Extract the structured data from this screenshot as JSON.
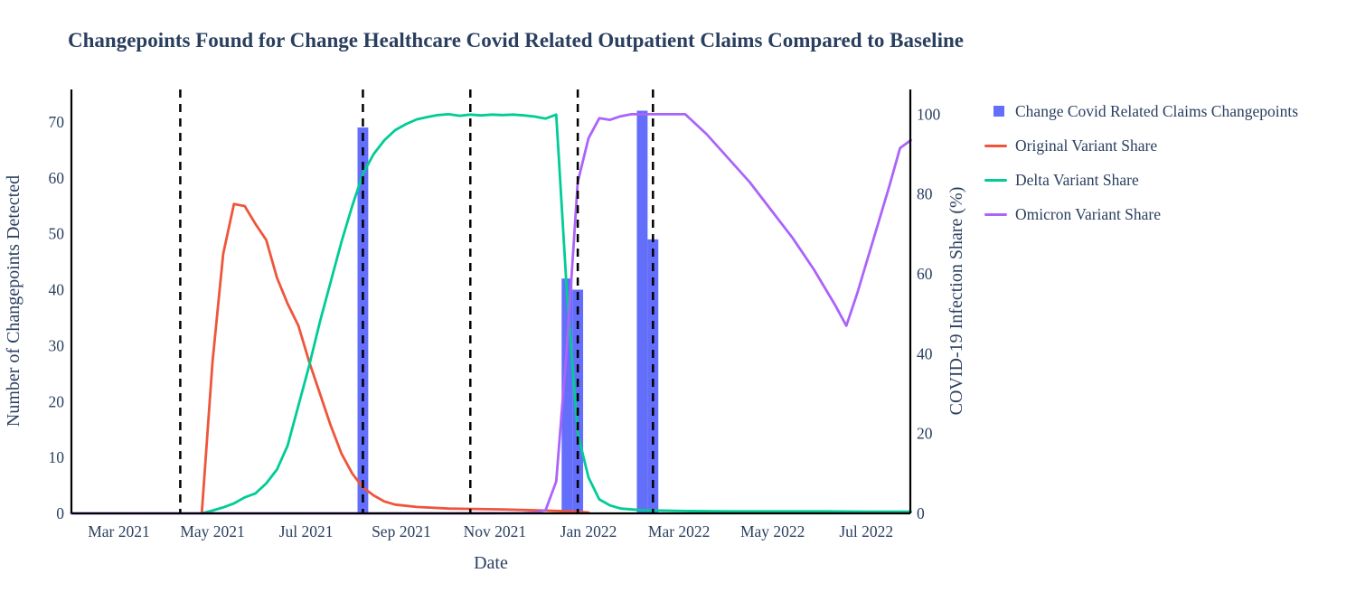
{
  "title": "Changepoints Found for Change Healthcare Covid Related Outpatient Claims Compared to Baseline",
  "colors": {
    "text": "#2a3f5f",
    "axis_line": "#000000",
    "dashed_line": "#000000",
    "changepoint_bar": "#636EFA",
    "original_variant": "#EF553B",
    "delta_variant": "#00CC96",
    "omicron_variant": "#AB63FA",
    "background": "#ffffff"
  },
  "legend": {
    "items": [
      {
        "id": "changepoints",
        "label": "Change Covid Related Claims Changepoints",
        "marker": "square",
        "color": "#636EFA"
      },
      {
        "id": "original",
        "label": "Original Variant Share",
        "marker": "line",
        "color": "#EF553B"
      },
      {
        "id": "delta",
        "label": "Delta Variant Share",
        "marker": "line",
        "color": "#00CC96"
      },
      {
        "id": "omicron",
        "label": "Omicron Variant Share",
        "marker": "line",
        "color": "#AB63FA"
      }
    ]
  },
  "chart_data": {
    "type": "bar+line",
    "title": "Changepoints Found for Change Healthcare Covid Related Outpatient Claims Compared to Baseline",
    "xlabel": "Date",
    "ylabel_left": "Number of Changepoints Detected",
    "ylabel_right": "COVID-19 Infection Share (%)",
    "grid": false,
    "legend_position": "outside-top-right",
    "x_range": [
      "2021-01-29",
      "2022-07-30"
    ],
    "ylim_left": [
      0,
      75.8
    ],
    "ylim_right": [
      0,
      106.2
    ],
    "x_ticks": [
      {
        "date": "2021-03-01",
        "label": "Mar 2021"
      },
      {
        "date": "2021-05-01",
        "label": "May 2021"
      },
      {
        "date": "2021-07-01",
        "label": "Jul 2021"
      },
      {
        "date": "2021-09-01",
        "label": "Sep 2021"
      },
      {
        "date": "2021-11-01",
        "label": "Nov 2021"
      },
      {
        "date": "2022-01-01",
        "label": "Jan 2022"
      },
      {
        "date": "2022-03-01",
        "label": "Mar 2022"
      },
      {
        "date": "2022-05-01",
        "label": "May 2022"
      },
      {
        "date": "2022-07-01",
        "label": "Jul 2022"
      }
    ],
    "y_ticks_left": [
      0,
      10,
      20,
      30,
      40,
      50,
      60,
      70
    ],
    "y_ticks_right": [
      0,
      20,
      40,
      60,
      80,
      100
    ],
    "changepoint_vlines": {
      "style": "black dashed vertical lines",
      "dates": [
        "2021-04-10",
        "2021-08-07",
        "2021-10-16",
        "2021-12-25",
        "2022-02-12"
      ]
    },
    "bars": {
      "name": "Change Covid Related Claims Changepoints",
      "axis": "left",
      "color": "#636EFA",
      "bar_width_days": 7,
      "points": [
        {
          "date": "2021-08-07",
          "value": 69
        },
        {
          "date": "2021-12-18",
          "value": 42
        },
        {
          "date": "2021-12-25",
          "value": 40
        },
        {
          "date": "2022-02-05",
          "value": 72
        },
        {
          "date": "2022-02-12",
          "value": 49
        }
      ]
    },
    "series": [
      {
        "name": "Original Variant Share",
        "axis": "right",
        "color": "#EF553B",
        "points": [
          [
            "2021-04-24",
            0
          ],
          [
            "2021-05-01",
            38
          ],
          [
            "2021-05-08",
            65
          ],
          [
            "2021-05-15",
            77.5
          ],
          [
            "2021-05-22",
            77
          ],
          [
            "2021-05-29",
            72.5
          ],
          [
            "2021-06-05",
            68.5
          ],
          [
            "2021-06-12",
            59
          ],
          [
            "2021-06-19",
            52.5
          ],
          [
            "2021-06-26",
            47
          ],
          [
            "2021-07-03",
            38
          ],
          [
            "2021-07-10",
            30
          ],
          [
            "2021-07-17",
            22
          ],
          [
            "2021-07-24",
            15
          ],
          [
            "2021-07-31",
            10
          ],
          [
            "2021-08-07",
            6.5
          ],
          [
            "2021-08-14",
            4.5
          ],
          [
            "2021-08-21",
            3
          ],
          [
            "2021-08-28",
            2.2
          ],
          [
            "2021-09-11",
            1.6
          ],
          [
            "2021-10-02",
            1.2
          ],
          [
            "2021-11-06",
            1.0
          ],
          [
            "2021-12-04",
            0.7
          ],
          [
            "2021-12-25",
            0.4
          ],
          [
            "2022-01-01",
            0.2
          ]
        ]
      },
      {
        "name": "Delta Variant Share",
        "axis": "right",
        "color": "#00CC96",
        "points": [
          [
            "2021-04-24",
            0
          ],
          [
            "2021-05-01",
            0.7
          ],
          [
            "2021-05-08",
            1.5
          ],
          [
            "2021-05-15",
            2.5
          ],
          [
            "2021-05-22",
            4
          ],
          [
            "2021-05-29",
            5
          ],
          [
            "2021-06-05",
            7.5
          ],
          [
            "2021-06-12",
            11
          ],
          [
            "2021-06-19",
            17
          ],
          [
            "2021-06-26",
            27
          ],
          [
            "2021-07-03",
            37
          ],
          [
            "2021-07-10",
            48
          ],
          [
            "2021-07-17",
            58
          ],
          [
            "2021-07-24",
            68
          ],
          [
            "2021-07-31",
            77
          ],
          [
            "2021-08-07",
            85
          ],
          [
            "2021-08-14",
            90
          ],
          [
            "2021-08-21",
            93.5
          ],
          [
            "2021-08-28",
            96
          ],
          [
            "2021-09-04",
            97.5
          ],
          [
            "2021-09-11",
            98.7
          ],
          [
            "2021-09-18",
            99.3
          ],
          [
            "2021-09-25",
            99.8
          ],
          [
            "2021-10-02",
            100
          ],
          [
            "2021-10-09",
            99.6
          ],
          [
            "2021-10-16",
            99.9
          ],
          [
            "2021-10-23",
            99.7
          ],
          [
            "2021-10-30",
            99.9
          ],
          [
            "2021-11-06",
            99.8
          ],
          [
            "2021-11-13",
            99.9
          ],
          [
            "2021-11-20",
            99.7
          ],
          [
            "2021-11-27",
            99.4
          ],
          [
            "2021-12-04",
            98.9
          ],
          [
            "2021-12-11",
            99.9
          ],
          [
            "2021-12-18",
            55
          ],
          [
            "2021-12-25",
            20
          ],
          [
            "2022-01-01",
            9
          ],
          [
            "2022-01-08",
            3.5
          ],
          [
            "2022-01-15",
            2
          ],
          [
            "2022-01-22",
            1.2
          ],
          [
            "2022-02-05",
            0.8
          ],
          [
            "2022-03-05",
            0.6
          ],
          [
            "2022-04-02",
            0.5
          ],
          [
            "2022-05-07",
            0.5
          ],
          [
            "2022-06-04",
            0.5
          ],
          [
            "2022-07-02",
            0.4
          ],
          [
            "2022-07-30",
            0.4
          ]
        ]
      },
      {
        "name": "Omicron Variant Share",
        "axis": "right",
        "color": "#AB63FA",
        "points": [
          [
            "2021-01-29",
            0
          ],
          [
            "2021-04-03",
            0
          ],
          [
            "2021-06-05",
            0
          ],
          [
            "2021-08-07",
            0
          ],
          [
            "2021-10-02",
            0
          ],
          [
            "2021-11-20",
            0.1
          ],
          [
            "2021-11-27",
            0.2
          ],
          [
            "2021-12-04",
            0.8
          ],
          [
            "2021-12-11",
            8
          ],
          [
            "2021-12-18",
            42
          ],
          [
            "2021-12-25",
            83
          ],
          [
            "2022-01-01",
            94
          ],
          [
            "2022-01-08",
            99
          ],
          [
            "2022-01-15",
            98.6
          ],
          [
            "2022-01-22",
            99.5
          ],
          [
            "2022-01-29",
            100
          ],
          [
            "2022-02-05",
            100
          ],
          [
            "2022-02-19",
            100
          ],
          [
            "2022-03-05",
            100
          ],
          [
            "2022-03-19",
            95
          ],
          [
            "2022-04-02",
            89
          ],
          [
            "2022-04-16",
            83
          ],
          [
            "2022-04-30",
            76
          ],
          [
            "2022-05-14",
            69
          ],
          [
            "2022-05-28",
            61
          ],
          [
            "2022-06-11",
            52
          ],
          [
            "2022-06-18",
            47
          ],
          [
            "2022-06-25",
            55
          ],
          [
            "2022-07-02",
            64
          ],
          [
            "2022-07-09",
            73
          ],
          [
            "2022-07-16",
            82
          ],
          [
            "2022-07-23",
            91.5
          ],
          [
            "2022-07-30",
            93.5
          ]
        ]
      }
    ]
  }
}
